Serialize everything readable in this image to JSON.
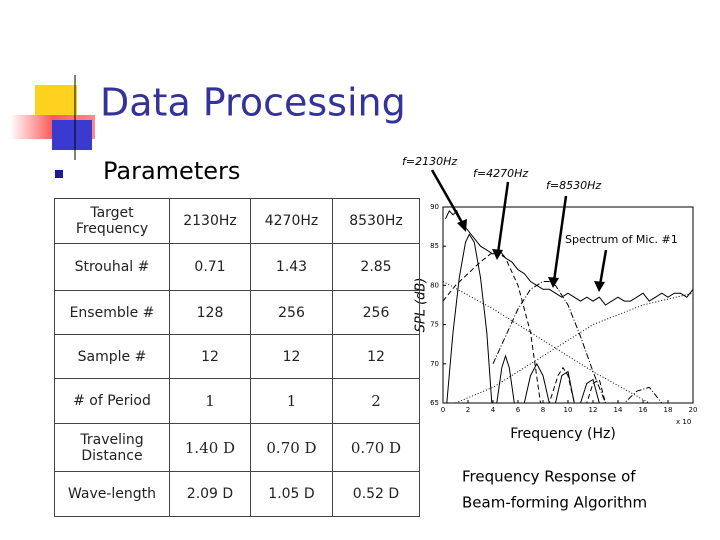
{
  "title": "Data Processing",
  "bullet": "Parameters",
  "table": {
    "header": [
      "Target Frequency",
      "2130Hz",
      "4270Hz",
      "8530Hz"
    ],
    "rows": [
      [
        "Strouhal #",
        "0.71",
        "1.43",
        "2.85"
      ],
      [
        "Ensemble #",
        "128",
        "256",
        "256"
      ],
      [
        "Sample #",
        "12",
        "12",
        "12"
      ],
      [
        "# of Period",
        "1",
        "1",
        "2"
      ],
      [
        "Traveling Distance",
        "1.40 D",
        "0.70 D",
        "0.70 D"
      ],
      [
        "Wave-length",
        "2.09 D",
        "1.05 D",
        "0.52 D"
      ]
    ]
  },
  "caption": [
    "Frequency Response of",
    "Beam-forming Algorithm"
  ],
  "chart_data": {
    "type": "line",
    "xlabel": "Frequency (Hz)",
    "ylabel": "SPL (dB)",
    "x_multiplier": "x 10",
    "annotations": [
      "f=2130Hz",
      "f=4270Hz",
      "f=8530Hz",
      "Spectrum of Mic. #1"
    ],
    "xlim": [
      0,
      20
    ],
    "ylim": [
      65,
      90
    ],
    "xticks": [
      0,
      2,
      4,
      6,
      8,
      10,
      12,
      14,
      16,
      18,
      20
    ],
    "yticks": [
      65,
      70,
      75,
      80,
      85,
      90
    ],
    "series": [
      {
        "color": "#000",
        "dash": "none",
        "x": [
          0.2,
          0.5,
          0.8,
          1.1,
          1.5,
          2,
          2.5,
          3,
          3.5,
          4,
          4.5,
          5,
          5.5,
          6,
          6.5,
          7,
          7.5,
          8,
          8.5,
          9,
          9.5,
          10,
          10.5,
          11,
          11.5,
          12,
          12.5,
          13,
          13.5,
          14,
          14.5,
          15,
          15.5,
          16,
          16.5,
          17,
          17.5,
          18,
          18.5,
          19,
          19.5,
          20
        ],
        "values": [
          88.5,
          89.5,
          89,
          89.5,
          88,
          87,
          86,
          85,
          84.5,
          84,
          84.5,
          83.5,
          83,
          82,
          81.5,
          80.5,
          80,
          79.5,
          79.5,
          79,
          78.5,
          79,
          78.5,
          78,
          78.5,
          78,
          78.5,
          77.5,
          78,
          78.5,
          78,
          78,
          78.5,
          79,
          78,
          78.5,
          79,
          78.5,
          79,
          79,
          78.5,
          79.5
        ]
      },
      {
        "color": "#000",
        "dash": "none",
        "x": [
          0.3,
          0.8,
          1.3,
          1.8,
          2.1,
          2.5,
          3,
          3.5,
          3.9,
          4.3,
          4.7,
          5,
          5.3,
          5.7,
          6.5,
          7,
          7.5,
          8,
          8.5,
          9,
          9.5,
          10,
          10.5,
          11,
          11.5,
          12,
          12.5
        ],
        "values": [
          65,
          74,
          81,
          85.5,
          86.5,
          85.5,
          81,
          74,
          65,
          65,
          69.5,
          71,
          69.5,
          65,
          65,
          68.5,
          70,
          68.5,
          65,
          65,
          68.5,
          69,
          65,
          65,
          67.5,
          68,
          65
        ]
      },
      {
        "color": "#000",
        "dash": "5,3",
        "x": [
          0,
          1,
          2,
          3,
          3.8,
          4.3,
          5,
          6,
          7,
          7.8,
          8.5,
          9.2,
          9.6,
          10,
          10.5,
          11.5,
          12,
          12.5,
          13
        ],
        "values": [
          78,
          80,
          81.5,
          83,
          84,
          84.3,
          83.5,
          80,
          74,
          65,
          65,
          68.5,
          69.5,
          68.5,
          65,
          65,
          67.5,
          68,
          65
        ]
      },
      {
        "color": "#000",
        "dash": "6,2,1,2",
        "x": [
          4,
          5,
          6,
          7,
          8,
          8.5,
          9,
          10,
          11,
          12,
          13,
          14.5,
          15.5,
          16.5,
          17.5
        ],
        "values": [
          70,
          73.5,
          77,
          79.5,
          80.5,
          80.5,
          80,
          77.5,
          73.5,
          69,
          65,
          65,
          66.5,
          67,
          65
        ]
      },
      {
        "color": "#000",
        "dash": "1,2",
        "x": [
          0,
          4,
          8,
          12,
          16.5
        ],
        "values": [
          80.5,
          77,
          73,
          69,
          65
        ]
      },
      {
        "color": "#000",
        "dash": "1,2",
        "x": [
          1,
          4,
          8,
          12,
          16,
          20
        ],
        "values": [
          65,
          67,
          71,
          75,
          77.5,
          79
        ]
      }
    ]
  }
}
